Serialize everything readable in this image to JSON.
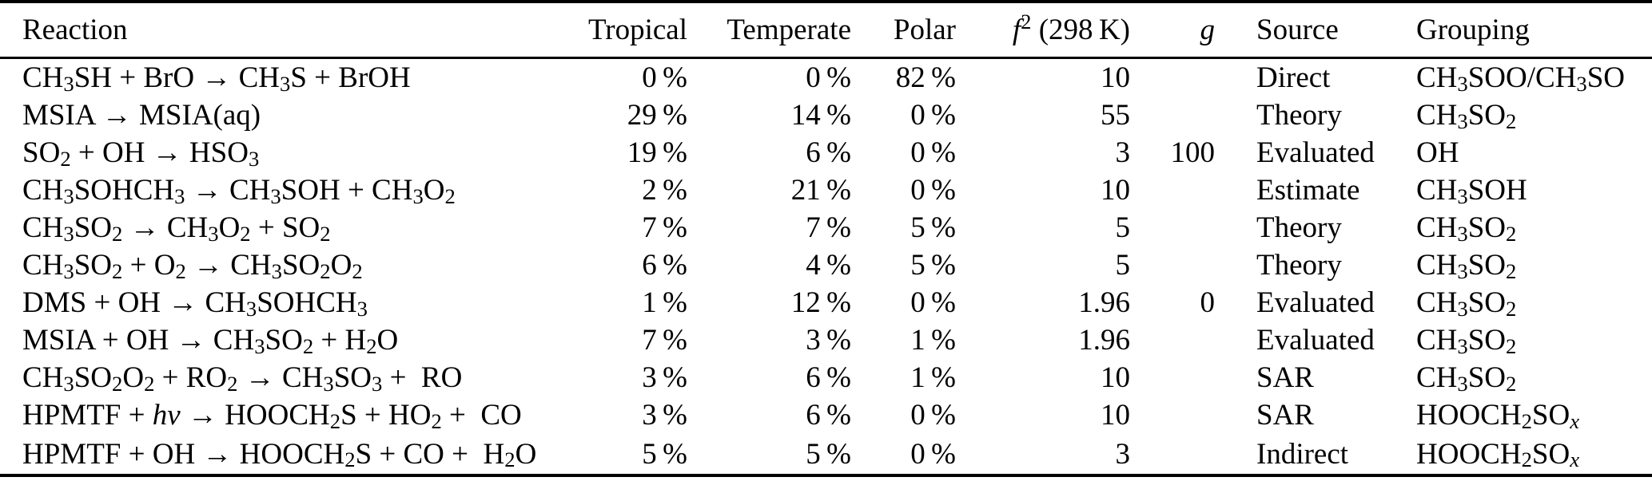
{
  "colors": {
    "background": "#ffffff",
    "text": "#000000",
    "rule": "#000000"
  },
  "table": {
    "columns": [
      {
        "key": "reaction",
        "label": "Reaction"
      },
      {
        "key": "tropical",
        "label": "Tropical"
      },
      {
        "key": "temperate",
        "label": "Temperate"
      },
      {
        "key": "polar",
        "label": "Polar"
      },
      {
        "key": "f2",
        "label": "*f*^{2} (298 K)"
      },
      {
        "key": "g",
        "label": "*g*"
      },
      {
        "key": "source",
        "label": "Source"
      },
      {
        "key": "grouping",
        "label": "Grouping"
      }
    ],
    "rows": [
      {
        "reaction": "CH_{3}SH + BrO → CH_{3}S + BrOH",
        "tropical": "0 %",
        "temperate": "0 %",
        "polar": "82 %",
        "f2": "10",
        "g": "",
        "source": "Direct",
        "grouping": "CH_{3}SOO/CH_{3}SO"
      },
      {
        "reaction": "MSIA → MSIA(aq)",
        "tropical": "29 %",
        "temperate": "14 %",
        "polar": "0 %",
        "f2": "55",
        "g": "",
        "source": "Theory",
        "grouping": "CH_{3}SO_{2}"
      },
      {
        "reaction": "SO_{2} + OH → HSO_{3}",
        "tropical": "19 %",
        "temperate": "6 %",
        "polar": "0 %",
        "f2": "3",
        "g": "100",
        "source": "Evaluated",
        "grouping": "OH"
      },
      {
        "reaction": "CH_{3}SOHCH_{3} → CH_{3}SOH + CH_{3}O_{2}",
        "tropical": "2 %",
        "temperate": "21 %",
        "polar": "0 %",
        "f2": "10",
        "g": "",
        "source": "Estimate",
        "grouping": "CH_{3}SOH"
      },
      {
        "reaction": "CH_{3}SO_{2} → CH_{3}O_{2} + SO_{2}",
        "tropical": "7 %",
        "temperate": "7 %",
        "polar": "5 %",
        "f2": "5",
        "g": "",
        "source": "Theory",
        "grouping": "CH_{3}SO_{2}"
      },
      {
        "reaction": "CH_{3}SO_{2} + O_{2} → CH_{3}SO_{2}O_{2}",
        "tropical": "6 %",
        "temperate": "4 %",
        "polar": "5 %",
        "f2": "5",
        "g": "",
        "source": "Theory",
        "grouping": "CH_{3}SO_{2}"
      },
      {
        "reaction": "DMS + OH → CH_{3}SOHCH_{3}",
        "tropical": "1 %",
        "temperate": "12 %",
        "polar": "0 %",
        "f2": "1.96",
        "g": "0",
        "source": "Evaluated",
        "grouping": "CH_{3}SO_{2}"
      },
      {
        "reaction": "MSIA + OH → CH_{3}SO_{2} + H_{2}O",
        "tropical": "7 %",
        "temperate": "3 %",
        "polar": "1 %",
        "f2": "1.96",
        "g": "",
        "source": "Evaluated",
        "grouping": "CH_{3}SO_{2}"
      },
      {
        "reaction": "CH_{3}SO_{2}O_{2} + RO_{2} → CH_{3}SO_{3} +  RO",
        "tropical": "3 %",
        "temperate": "6 %",
        "polar": "1 %",
        "f2": "10",
        "g": "",
        "source": "SAR",
        "grouping": "CH_{3}SO_{2}"
      },
      {
        "reaction": "HPMTF + *hν* → HOOCH_{2}S + HO_{2} +  CO",
        "tropical": "3 %",
        "temperate": "6 %",
        "polar": "0 %",
        "f2": "10",
        "g": "",
        "source": "SAR",
        "grouping": "HOOCH_{2}SO_{*x*}"
      },
      {
        "reaction": "HPMTF + OH → HOOCH_{2}S + CO +  H_{2}O",
        "tropical": "5 %",
        "temperate": "5 %",
        "polar": "0 %",
        "f2": "3",
        "g": "",
        "source": "Indirect",
        "grouping": "HOOCH_{2}SO_{*x*}"
      }
    ]
  }
}
